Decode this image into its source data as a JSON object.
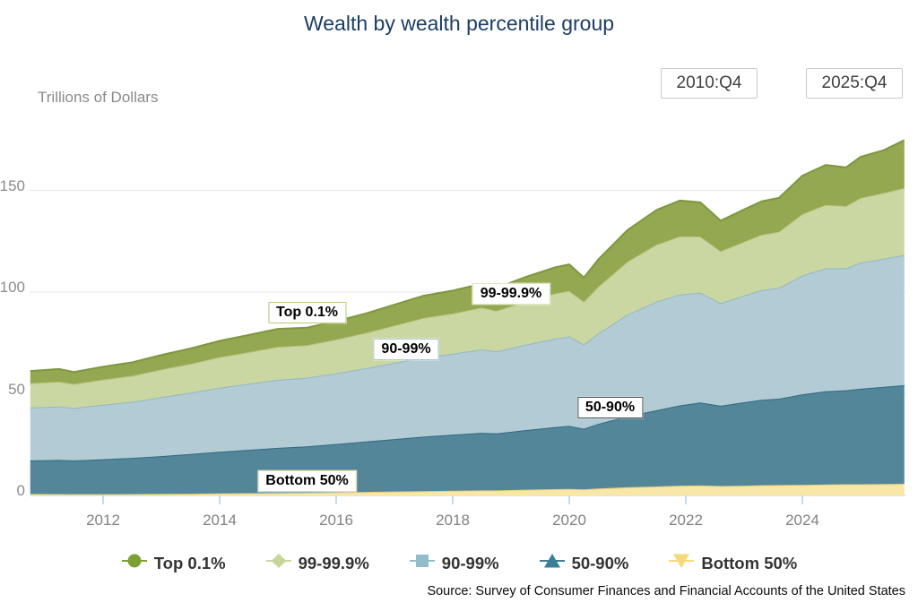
{
  "header": {
    "title": "Wealth by wealth percentile group",
    "y_axis_title": "Trillions of Dollars",
    "range_start": "2010:Q4",
    "range_end": "2025:Q4"
  },
  "source": "Source: Survey of Consumer Finances and Financial Accounts of the United States",
  "chart_data": {
    "type": "area",
    "stacked": true,
    "title": "Wealth by wealth percentile group",
    "ylabel": "Trillions of Dollars",
    "legend_position": "bottom",
    "grid": "horizontal",
    "xlim": [
      2010.75,
      2025.75
    ],
    "ylim": [
      0,
      180
    ],
    "x_ticks": [
      2012,
      2014,
      2016,
      2018,
      2020,
      2022,
      2024
    ],
    "y_ticks": [
      0,
      50,
      100,
      150
    ],
    "x": [
      2010.75,
      2011.25,
      2011.5,
      2012.0,
      2012.5,
      2013.0,
      2013.5,
      2014.0,
      2014.5,
      2015.0,
      2015.5,
      2016.0,
      2016.5,
      2017.0,
      2017.5,
      2018.0,
      2018.5,
      2018.75,
      2019.25,
      2019.75,
      2020.0,
      2020.25,
      2020.5,
      2021.0,
      2021.5,
      2021.9,
      2022.25,
      2022.6,
      2023.0,
      2023.3,
      2023.6,
      2024.0,
      2024.4,
      2024.75,
      2025.0,
      2025.4,
      2025.75
    ],
    "stack_order_bottom_to_top": [
      "Bottom 50%",
      "50-90%",
      "90-99%",
      "99-99.9%",
      "Top 0.1%"
    ],
    "series": [
      {
        "name": "Top 0.1%",
        "marker": "circle",
        "color": "#94a851",
        "line_color": "#7e973f",
        "legend_color": "#7ba133",
        "values": [
          6.0,
          6.2,
          5.9,
          6.3,
          6.6,
          7.1,
          7.5,
          8.0,
          8.4,
          8.8,
          8.6,
          9.0,
          9.5,
          10.2,
          10.9,
          11.2,
          11.7,
          11.2,
          12.1,
          12.8,
          13.0,
          11.8,
          13.4,
          15.5,
          17.0,
          17.6,
          16.8,
          15.0,
          15.8,
          16.4,
          16.6,
          18.8,
          19.6,
          19.0,
          20.2,
          21.0,
          23.5
        ]
      },
      {
        "name": "99-99.9%",
        "marker": "diamond",
        "color": "#cbd7a2",
        "line_color": "#b3c37c",
        "legend_color": "#c9d69b",
        "values": [
          12.0,
          12.2,
          11.8,
          12.4,
          12.8,
          13.6,
          14.2,
          15.0,
          15.6,
          16.2,
          16.0,
          16.6,
          17.4,
          18.4,
          19.4,
          19.8,
          20.6,
          20.0,
          21.2,
          22.2,
          22.4,
          21.0,
          23.0,
          26.0,
          28.0,
          28.6,
          27.6,
          25.5,
          26.5,
          27.2,
          27.6,
          30.2,
          31.2,
          30.6,
          31.8,
          32.4,
          33.0
        ]
      },
      {
        "name": "90-99%",
        "marker": "square",
        "color": "#b2cbd4",
        "line_color": "#94b7c4",
        "legend_color": "#92bdca",
        "values": [
          26.0,
          26.3,
          25.8,
          26.8,
          27.6,
          29.0,
          30.2,
          31.5,
          32.5,
          33.5,
          33.8,
          34.8,
          36.0,
          37.5,
          39.0,
          39.8,
          41.0,
          40.3,
          42.0,
          43.5,
          44.0,
          41.5,
          44.5,
          50.0,
          53.5,
          54.5,
          54.0,
          50.5,
          52.5,
          54.0,
          54.5,
          58.5,
          60.5,
          60.0,
          62.0,
          63.0,
          64.0
        ]
      },
      {
        "name": "50-90%",
        "marker": "triangle",
        "color": "#538699",
        "line_color": "#2f6a82",
        "legend_color": "#3c7e93",
        "values": [
          16.5,
          16.8,
          16.6,
          17.2,
          17.8,
          18.6,
          19.5,
          20.5,
          21.3,
          22.2,
          22.8,
          23.8,
          24.8,
          25.8,
          26.8,
          27.6,
          28.3,
          28.0,
          29.3,
          30.5,
          31.0,
          29.8,
          31.8,
          35.0,
          37.5,
          39.5,
          40.8,
          39.5,
          41.0,
          42.0,
          42.5,
          44.5,
          45.8,
          46.2,
          47.0,
          47.8,
          48.5
        ]
      },
      {
        "name": "Bottom 50%",
        "marker": "triangle-down",
        "color": "#f8e7a7",
        "line_color": "#e8cf7e",
        "legend_color": "#f6d87d",
        "values": [
          0.7,
          0.65,
          0.6,
          0.6,
          0.65,
          0.75,
          0.85,
          1.0,
          1.1,
          1.2,
          1.3,
          1.5,
          1.7,
          1.9,
          2.1,
          2.3,
          2.5,
          2.5,
          2.8,
          3.1,
          3.2,
          3.0,
          3.4,
          4.0,
          4.4,
          4.8,
          4.9,
          4.6,
          4.8,
          5.0,
          5.1,
          5.2,
          5.4,
          5.5,
          5.5,
          5.6,
          5.7
        ]
      }
    ],
    "annotations": [
      {
        "label": "Top 0.1%",
        "x": 2015.5,
        "y": 90,
        "border": "#b9c77d"
      },
      {
        "label": "99-99.9%",
        "x": 2019.0,
        "y": 99,
        "border": "#dde5c2"
      },
      {
        "label": "90-99%",
        "x": 2017.2,
        "y": 72,
        "border": "#a9c6d1"
      },
      {
        "label": "50-90%",
        "x": 2020.7,
        "y": 43,
        "border": "#47535a"
      },
      {
        "label": "Bottom 50%",
        "x": 2015.5,
        "y": 7,
        "border": "#ecd9a1"
      }
    ],
    "colors": {
      "title": "#1c3d63",
      "axis_text": "#8c8c8c",
      "gridline": "#e7e7e7",
      "axis_line": "#cbcbcb",
      "x_tick": "#b9cede"
    }
  }
}
